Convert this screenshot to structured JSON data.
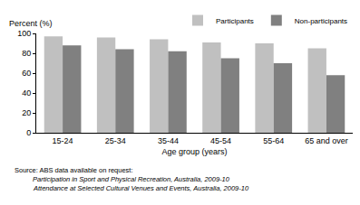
{
  "chart_data": {
    "type": "bar",
    "y_label": "Percent (%)",
    "x_label": "Age group (years)",
    "categories": [
      "15-24",
      "25-34",
      "35-44",
      "45-54",
      "55-64",
      "65 and over"
    ],
    "series": [
      {
        "name": "Participants",
        "color": "#c0c0c0",
        "values": [
          97,
          96,
          94,
          91,
          90,
          85
        ]
      },
      {
        "name": "Non-participants",
        "color": "#808080",
        "values": [
          88,
          84,
          82,
          75,
          70,
          58
        ]
      }
    ],
    "ylim": [
      0,
      100
    ],
    "yticks": [
      0,
      20,
      40,
      60,
      80,
      100
    ],
    "grid": false,
    "legend": "top right",
    "annotations": [
      "Source: ABS data available on request:",
      "Participation in Sport and Physical Recreation, Australia, 2009-10",
      "Attendance at Selected Cultural Venues and Events, Australia, 2009-10"
    ]
  }
}
